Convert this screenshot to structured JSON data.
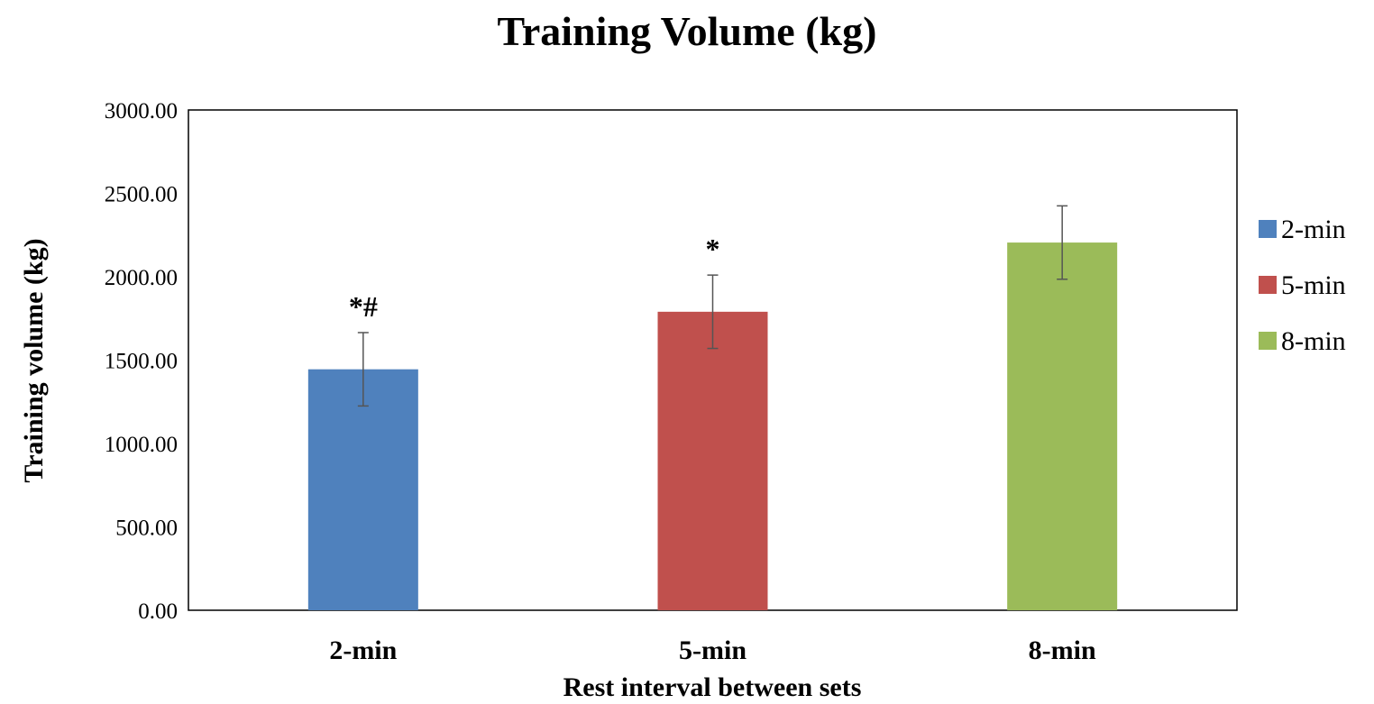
{
  "chart_data": {
    "type": "bar",
    "title": "Training Volume (kg)",
    "xlabel": "Rest interval between sets",
    "ylabel": "Training volume (kg)",
    "ylim": [
      0,
      3000
    ],
    "yticks": [
      "0.00",
      "500.00",
      "1000.00",
      "1500.00",
      "2000.00",
      "2500.00",
      "3000.00"
    ],
    "grid": false,
    "legend_position": "right",
    "categories": [
      "2-min",
      "5-min",
      "8-min"
    ],
    "series": [
      {
        "name": "2-min",
        "color": "#4F81BD",
        "category": "2-min",
        "value": 1445,
        "error": 220,
        "annotation": "*#"
      },
      {
        "name": "5-min",
        "color": "#C0504D",
        "category": "5-min",
        "value": 1790,
        "error": 220,
        "annotation": "*"
      },
      {
        "name": "8-min",
        "color": "#9BBB59",
        "category": "8-min",
        "value": 2205,
        "error": 220,
        "annotation": ""
      }
    ]
  }
}
